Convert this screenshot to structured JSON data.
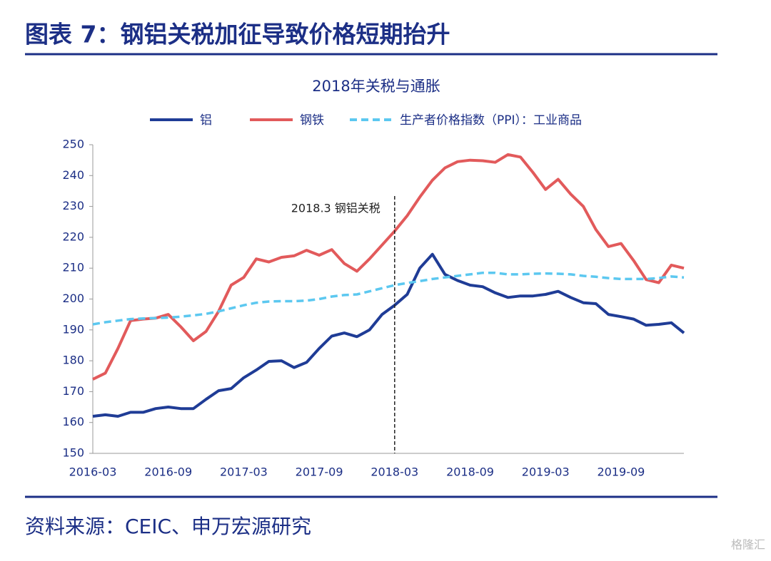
{
  "header": {
    "title": "图表 7：钢铝关税加征导致价格短期抬升"
  },
  "chart_data": {
    "type": "line",
    "title": "2018年关税与通胀",
    "categories": [
      "2016-03",
      null,
      null,
      null,
      null,
      null,
      "2016-09",
      null,
      null,
      null,
      null,
      null,
      "2017-03",
      null,
      null,
      null,
      null,
      null,
      "2017-09",
      null,
      null,
      null,
      null,
      null,
      "2018-03",
      null,
      null,
      null,
      null,
      null,
      "2018-09",
      null,
      null,
      null,
      null,
      null,
      "2019-03",
      null,
      null,
      null,
      null,
      null,
      "2019-09",
      null,
      null,
      null,
      null,
      null
    ],
    "series": [
      {
        "name": "铝",
        "color": "#1f3c96",
        "dashed": false,
        "values": [
          162,
          162.5,
          162,
          163.3,
          163.3,
          164.5,
          165,
          164.5,
          164.5,
          167.5,
          170.3,
          171,
          174.5,
          177,
          179.8,
          180,
          177.8,
          179.5,
          184,
          188,
          189,
          187.8,
          190,
          195,
          198,
          201.5,
          210,
          214.5,
          208,
          206,
          204.5,
          204,
          202,
          200.5,
          201,
          201,
          201.5,
          202.5,
          200.5,
          198.8,
          198.5,
          195,
          194.3,
          193.5,
          191.5,
          191.8,
          192.3,
          189
        ]
      },
      {
        "name": "钢铁",
        "color": "#e25a5b",
        "dashed": false,
        "values": [
          174,
          176,
          184,
          193,
          193.5,
          193.8,
          195,
          191,
          186.5,
          189.5,
          196,
          204.5,
          207,
          213,
          212,
          213.5,
          214,
          215.8,
          214.2,
          216,
          211.5,
          209,
          213,
          217.5,
          222,
          227,
          233,
          238.5,
          242.5,
          244.5,
          245,
          244.8,
          244.3,
          246.8,
          246,
          241,
          235.5,
          238.8,
          234,
          230,
          222.5,
          217,
          218,
          212.5,
          206.3,
          205.3,
          211,
          210
        ]
      },
      {
        "name": "生产者价格指数（PPI）：工业商品",
        "color": "#5cc8f0",
        "dashed": true,
        "values": [
          191.8,
          192.5,
          193,
          193.5,
          193.7,
          193.8,
          194,
          194.3,
          194.7,
          195.2,
          196,
          197,
          198,
          198.8,
          199.2,
          199.3,
          199.3,
          199.5,
          200,
          200.8,
          201.3,
          201.5,
          202.5,
          203.5,
          204.5,
          205.2,
          205.8,
          206.5,
          207,
          207.5,
          208,
          208.5,
          208.5,
          208,
          208,
          208.2,
          208.3,
          208.2,
          208,
          207.5,
          207.2,
          206.8,
          206.5,
          206.5,
          206.5,
          206.8,
          207.3,
          207
        ]
      }
    ],
    "ylim": [
      150,
      250
    ],
    "yticks": [
      150,
      160,
      170,
      180,
      190,
      200,
      210,
      220,
      230,
      240,
      250
    ],
    "annotations": [
      {
        "text": "2018.3 钢铝关税",
        "x": "2018-03"
      }
    ]
  },
  "footer": {
    "source": "资料来源：CEIC、申万宏源研究"
  },
  "watermark": "格隆汇"
}
